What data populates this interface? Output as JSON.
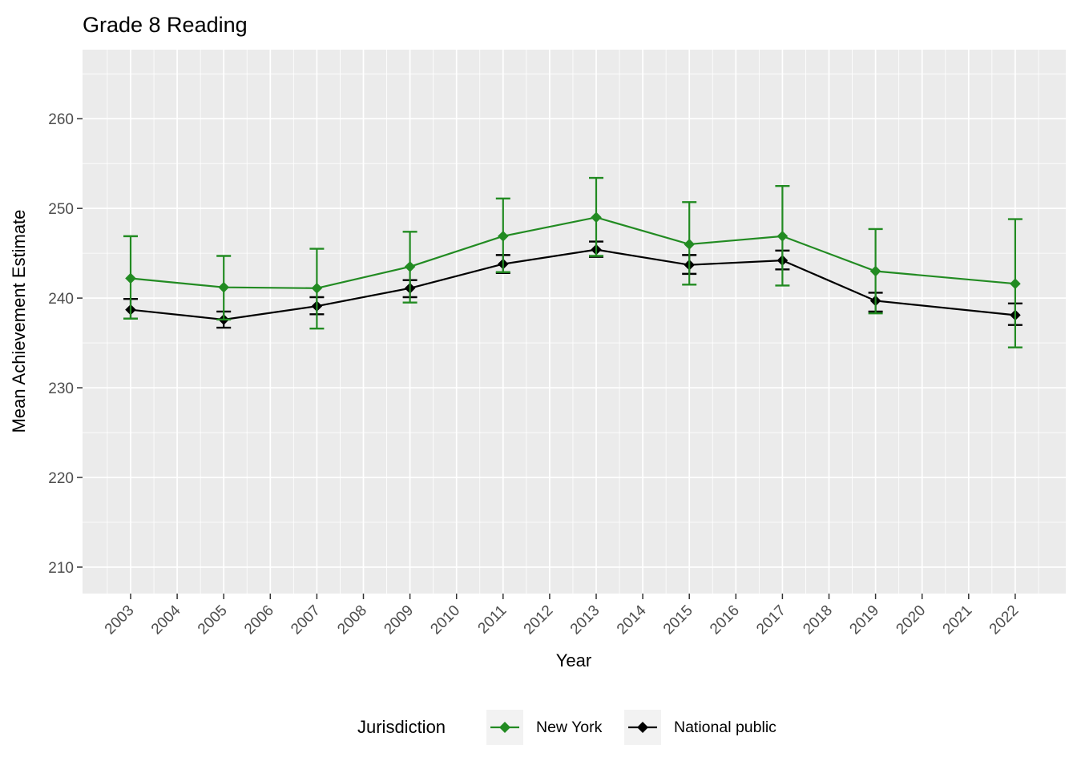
{
  "chart_data": {
    "type": "line",
    "title": "Grade 8 Reading",
    "xlabel": "Year",
    "ylabel": "Mean Achievement Estimate",
    "x_categories": [
      "2003",
      "2004",
      "2005",
      "2006",
      "2007",
      "2008",
      "2009",
      "2010",
      "2011",
      "2012",
      "2013",
      "2014",
      "2015",
      "2016",
      "2017",
      "2018",
      "2019",
      "2020",
      "2021",
      "2022"
    ],
    "y_ticks": [
      210,
      220,
      230,
      240,
      250,
      260
    ],
    "y_minor_ticks": [
      215,
      225,
      235,
      245,
      255,
      265
    ],
    "ylim": [
      207.05,
      267.7
    ],
    "grid": "on",
    "panel_bg": "#EBEBEB",
    "grid_color": "#FFFFFF",
    "tick_color": "#333333",
    "tick_label_color": "#4D4D4D",
    "legend": {
      "title": "Jurisdiction",
      "position": "bottom",
      "key_bg": "#F2F2F2"
    },
    "series": [
      {
        "name": "New York",
        "color": "#228B22",
        "marker": "diamond",
        "points": [
          {
            "x": "2003",
            "y": 242.2,
            "lo": 237.7,
            "hi": 246.9
          },
          {
            "x": "2005",
            "y": 241.2,
            "lo": 237.6,
            "hi": 244.7
          },
          {
            "x": "2007",
            "y": 241.1,
            "lo": 236.6,
            "hi": 245.5
          },
          {
            "x": "2009",
            "y": 243.5,
            "lo": 239.5,
            "hi": 247.4
          },
          {
            "x": "2011",
            "y": 246.9,
            "lo": 242.9,
            "hi": 251.1
          },
          {
            "x": "2013",
            "y": 249.0,
            "lo": 244.7,
            "hi": 253.4
          },
          {
            "x": "2015",
            "y": 246.0,
            "lo": 241.5,
            "hi": 250.7
          },
          {
            "x": "2017",
            "y": 246.9,
            "lo": 241.4,
            "hi": 252.5
          },
          {
            "x": "2019",
            "y": 243.0,
            "lo": 238.3,
            "hi": 247.7
          },
          {
            "x": "2022",
            "y": 241.6,
            "lo": 234.5,
            "hi": 248.8
          }
        ]
      },
      {
        "name": "National public",
        "color": "#000000",
        "marker": "diamond",
        "points": [
          {
            "x": "2003",
            "y": 238.7,
            "lo": 237.7,
            "hi": 239.9
          },
          {
            "x": "2005",
            "y": 237.6,
            "lo": 236.7,
            "hi": 238.5
          },
          {
            "x": "2007",
            "y": 239.1,
            "lo": 238.2,
            "hi": 240.1
          },
          {
            "x": "2009",
            "y": 241.1,
            "lo": 240.1,
            "hi": 242.0
          },
          {
            "x": "2011",
            "y": 243.8,
            "lo": 242.8,
            "hi": 244.8
          },
          {
            "x": "2013",
            "y": 245.4,
            "lo": 244.6,
            "hi": 246.3
          },
          {
            "x": "2015",
            "y": 243.7,
            "lo": 242.7,
            "hi": 244.8
          },
          {
            "x": "2017",
            "y": 244.2,
            "lo": 243.2,
            "hi": 245.3
          },
          {
            "x": "2019",
            "y": 239.7,
            "lo": 238.5,
            "hi": 240.6
          },
          {
            "x": "2022",
            "y": 238.1,
            "lo": 237.0,
            "hi": 239.4
          }
        ]
      }
    ]
  }
}
